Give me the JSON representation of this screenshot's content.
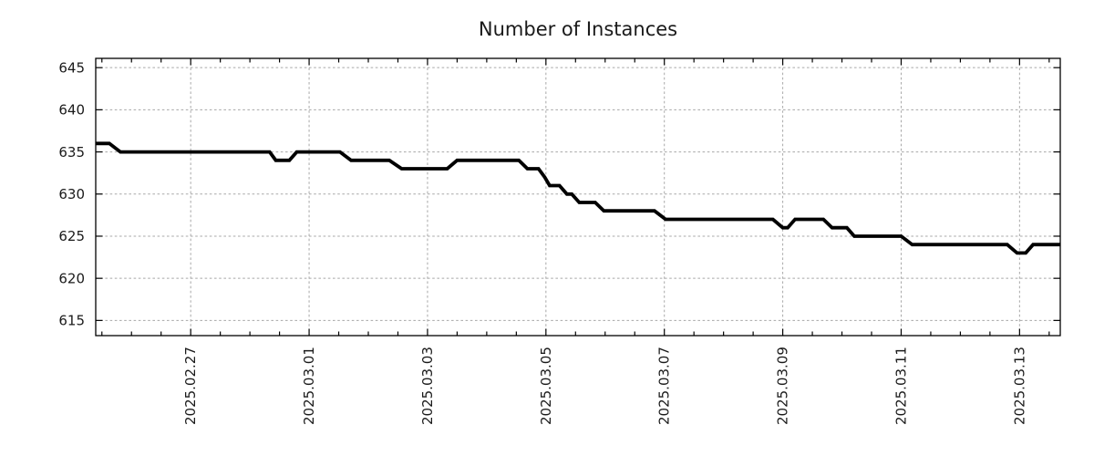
{
  "chart_data": {
    "type": "line",
    "title": "Number of Instances",
    "x_axis": {
      "range": [
        "2025-02-25T09:30",
        "2025-03-13T16:30"
      ],
      "major_ticks": [
        {
          "label": "2025.02.27",
          "t": "2025-02-27T00:00"
        },
        {
          "label": "2025.03.01",
          "t": "2025-03-01T00:00"
        },
        {
          "label": "2025.03.03",
          "t": "2025-03-03T00:00"
        },
        {
          "label": "2025.03.05",
          "t": "2025-03-05T00:00"
        },
        {
          "label": "2025.03.07",
          "t": "2025-03-07T00:00"
        },
        {
          "label": "2025.03.09",
          "t": "2025-03-09T00:00"
        },
        {
          "label": "2025.03.11",
          "t": "2025-03-11T00:00"
        },
        {
          "label": "2025.03.13",
          "t": "2025-03-13T00:00"
        }
      ],
      "minor_tick_hours": 12,
      "label_rotation_deg": -90,
      "grid_on_major": true
    },
    "y_axis": {
      "range": [
        613.2,
        646.1
      ],
      "major_ticks": [
        615,
        620,
        625,
        630,
        635,
        640,
        645
      ],
      "grid_on_major": true
    },
    "legend": "none",
    "series": [
      {
        "name": "instances",
        "color": "#000000",
        "width": 3.8,
        "points": [
          [
            "2025-02-25T09:30",
            636
          ],
          [
            "2025-02-25T15:00",
            636
          ],
          [
            "2025-02-25T19:30",
            635
          ],
          [
            "2025-02-28T08:00",
            635
          ],
          [
            "2025-02-28T10:30",
            634
          ],
          [
            "2025-02-28T16:00",
            634
          ],
          [
            "2025-02-28T19:00",
            635
          ],
          [
            "2025-03-01T12:30",
            635
          ],
          [
            "2025-03-01T17:00",
            634
          ],
          [
            "2025-03-02T08:30",
            634
          ],
          [
            "2025-03-02T13:30",
            633
          ],
          [
            "2025-03-03T08:00",
            633
          ],
          [
            "2025-03-03T12:00",
            634
          ],
          [
            "2025-03-04T13:00",
            634
          ],
          [
            "2025-03-04T16:30",
            633
          ],
          [
            "2025-03-04T21:00",
            633
          ],
          [
            "2025-03-04T23:30",
            632
          ],
          [
            "2025-03-05T01:30",
            631
          ],
          [
            "2025-03-05T05:30",
            631
          ],
          [
            "2025-03-05T08:30",
            630
          ],
          [
            "2025-03-05T10:30",
            630
          ],
          [
            "2025-03-05T13:30",
            629
          ],
          [
            "2025-03-05T20:00",
            629
          ],
          [
            "2025-03-05T23:30",
            628
          ],
          [
            "2025-03-06T20:00",
            628
          ],
          [
            "2025-03-07T00:30",
            627
          ],
          [
            "2025-03-08T20:00",
            627
          ],
          [
            "2025-03-09T00:00",
            626
          ],
          [
            "2025-03-09T02:00",
            626
          ],
          [
            "2025-03-09T05:00",
            627
          ],
          [
            "2025-03-09T16:30",
            627
          ],
          [
            "2025-03-09T20:00",
            626
          ],
          [
            "2025-03-10T02:00",
            626
          ],
          [
            "2025-03-10T05:00",
            625
          ],
          [
            "2025-03-11T00:00",
            625
          ],
          [
            "2025-03-11T04:30",
            624
          ],
          [
            "2025-03-12T19:00",
            624
          ],
          [
            "2025-03-12T23:00",
            623
          ],
          [
            "2025-03-13T02:30",
            623
          ],
          [
            "2025-03-13T05:30",
            624
          ],
          [
            "2025-03-13T16:30",
            624
          ]
        ]
      }
    ],
    "colors": {
      "background": "#ffffff",
      "grid": "#a8a8a8",
      "border": "#000000",
      "text": "#1a1a1a",
      "line": "#000000"
    }
  }
}
